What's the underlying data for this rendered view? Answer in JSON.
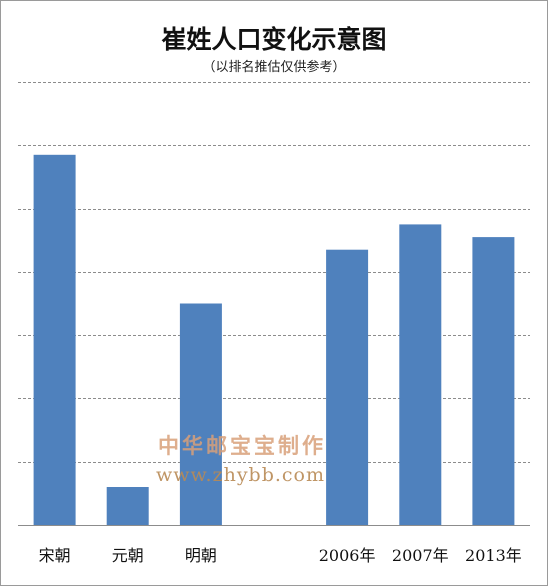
{
  "chart_data": {
    "type": "bar",
    "title": "崔姓人口变化示意图",
    "subtitle": "（以排名推估仅供参考）",
    "categories": [
      "宋朝",
      "元朝",
      "明朝",
      "",
      "2006年",
      "2007年",
      "2013年"
    ],
    "values": [
      58.5,
      6,
      35,
      null,
      43.5,
      47.5,
      45.5
    ],
    "ylim": [
      0,
      70
    ],
    "grid": true,
    "bar_color": "#4f81bd",
    "xlabel": "",
    "ylabel": ""
  },
  "watermark": {
    "line1": "中华邮宝宝制作",
    "line2": "www.zhybb.com"
  }
}
